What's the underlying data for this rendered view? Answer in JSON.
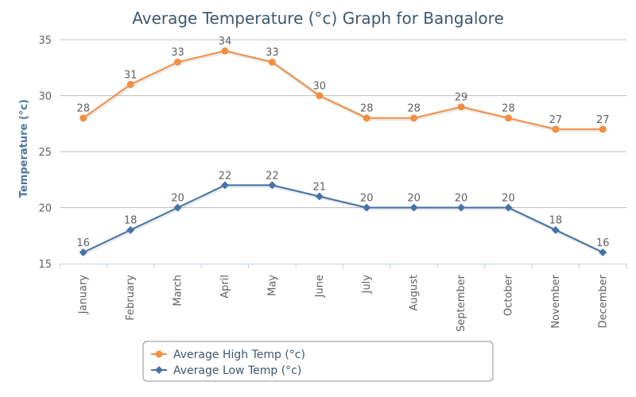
{
  "chart_data": {
    "type": "line",
    "title": "Average Temperature (°c) Graph for Bangalore",
    "ylabel": "Temperature (°c)",
    "xlabel": "",
    "categories": [
      "January",
      "February",
      "March",
      "April",
      "May",
      "June",
      "July",
      "August",
      "September",
      "October",
      "November",
      "December"
    ],
    "ylim": [
      15,
      35
    ],
    "yticks": [
      15,
      20,
      25,
      30,
      35
    ],
    "grid": true,
    "legend_position": "bottom",
    "series": [
      {
        "name": "Average High Temp (°c)",
        "color": "#f28f43",
        "marker": "circle",
        "values": [
          28,
          31,
          33,
          34,
          33,
          30,
          28,
          28,
          29,
          28,
          27,
          27
        ]
      },
      {
        "name": "Average Low Temp (°c)",
        "color": "#4572a7",
        "marker": "diamond",
        "values": [
          16,
          18,
          20,
          22,
          22,
          21,
          20,
          20,
          20,
          20,
          18,
          16
        ]
      }
    ]
  }
}
